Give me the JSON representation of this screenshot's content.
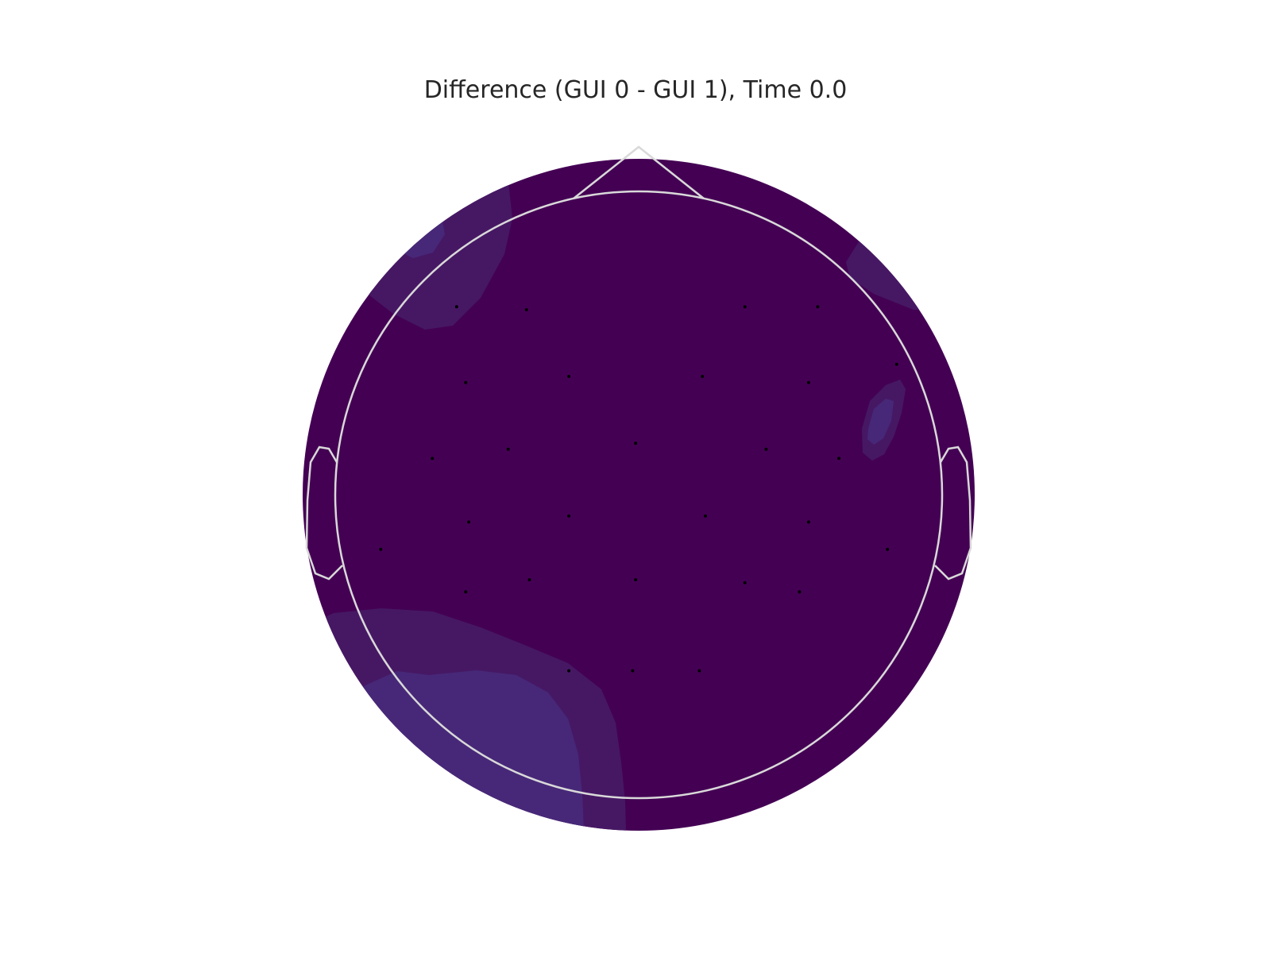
{
  "chart_data": {
    "type": "heatmap",
    "title": "Difference (GUI 0 - GUI 1), Time 0.0",
    "colors": {
      "level_0": "#440154",
      "level_1": "#461864",
      "level_2": "#472878",
      "outline": "#d9d9d9",
      "sensor": "#000000"
    },
    "sensors": [
      {
        "x": -0.6,
        "y": 0.62
      },
      {
        "x": -0.37,
        "y": 0.61
      },
      {
        "x": 0.35,
        "y": 0.62
      },
      {
        "x": 0.59,
        "y": 0.62
      },
      {
        "x": -0.57,
        "y": 0.37
      },
      {
        "x": -0.23,
        "y": 0.39
      },
      {
        "x": 0.21,
        "y": 0.39
      },
      {
        "x": 0.56,
        "y": 0.37
      },
      {
        "x": 0.85,
        "y": 0.43
      },
      {
        "x": -0.68,
        "y": 0.12
      },
      {
        "x": -0.43,
        "y": 0.15
      },
      {
        "x": -0.01,
        "y": 0.17
      },
      {
        "x": 0.42,
        "y": 0.15
      },
      {
        "x": 0.66,
        "y": 0.12
      },
      {
        "x": -0.56,
        "y": -0.09
      },
      {
        "x": -0.23,
        "y": -0.07
      },
      {
        "x": 0.22,
        "y": -0.07
      },
      {
        "x": 0.56,
        "y": -0.09
      },
      {
        "x": -0.85,
        "y": -0.18
      },
      {
        "x": 0.82,
        "y": -0.18
      },
      {
        "x": -0.57,
        "y": -0.32
      },
      {
        "x": -0.36,
        "y": -0.28
      },
      {
        "x": -0.01,
        "y": -0.28
      },
      {
        "x": 0.35,
        "y": -0.29
      },
      {
        "x": 0.53,
        "y": -0.32
      },
      {
        "x": -0.23,
        "y": -0.58
      },
      {
        "x": -0.02,
        "y": -0.58
      },
      {
        "x": 0.2,
        "y": -0.58
      }
    ]
  }
}
